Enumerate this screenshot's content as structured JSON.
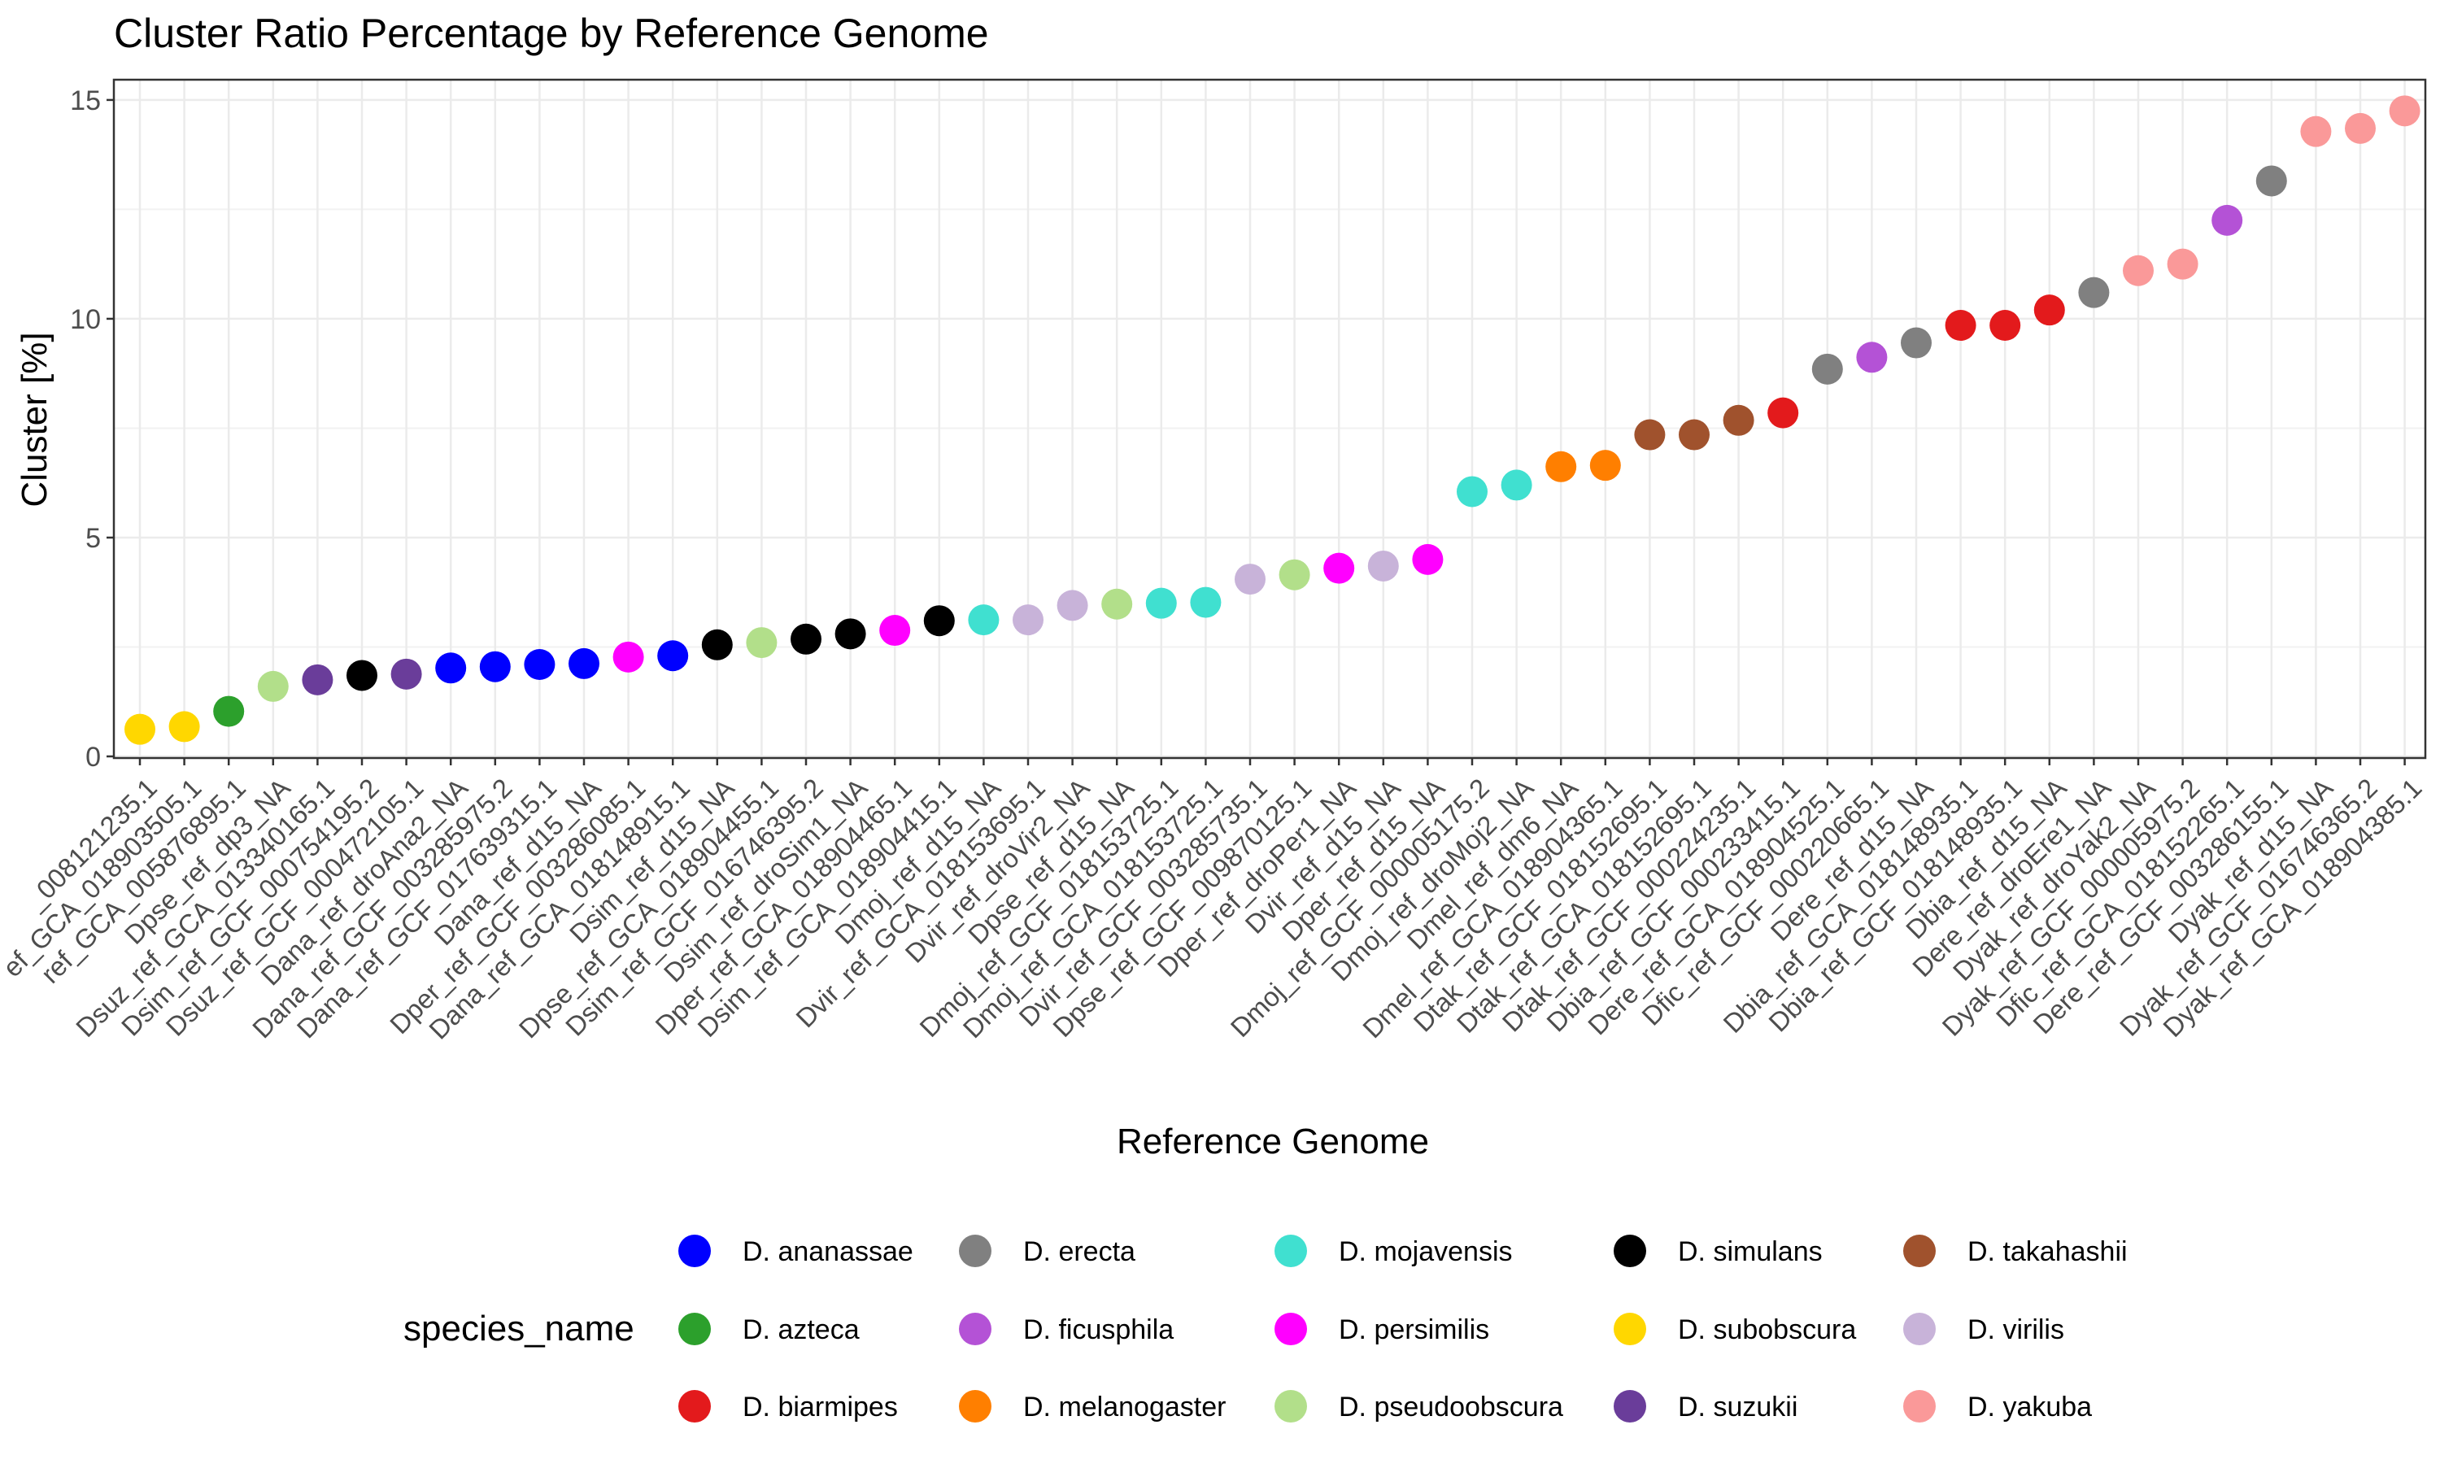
{
  "chart_data": {
    "type": "scatter",
    "title": "Cluster Ratio Percentage by Reference Genome",
    "xlabel": "Reference Genome",
    "ylabel": "Cluster [%]",
    "ylim": [
      0,
      15.5
    ],
    "yticks": [
      0,
      5,
      10,
      15
    ],
    "grid": true,
    "legend_placement": "bottom",
    "legend_title": "species_name",
    "legend": [
      {
        "name": "D. ananassae",
        "color": "#0000FF"
      },
      {
        "name": "D. erecta",
        "color": "#808080"
      },
      {
        "name": "D. mojavensis",
        "color": "#40E0D0"
      },
      {
        "name": "D. simulans",
        "color": "#000000"
      },
      {
        "name": "D. takahashii",
        "color": "#A0522D"
      },
      {
        "name": "D. azteca",
        "color": "#2CA02C"
      },
      {
        "name": "D. ficusphila",
        "color": "#B452D6"
      },
      {
        "name": "D. persimilis",
        "color": "#FF00FF"
      },
      {
        "name": "D. subobscura",
        "color": "#FFD700"
      },
      {
        "name": "D. virilis",
        "color": "#C8B3D9"
      },
      {
        "name": "D. biarmipes",
        "color": "#E31A1C"
      },
      {
        "name": "D. melanogaster",
        "color": "#FF7F00"
      },
      {
        "name": "D. pseudoobscura",
        "color": "#B2DF8A"
      },
      {
        "name": "D. suzukii",
        "color": "#6A3D9A"
      },
      {
        "name": "D. yakuba",
        "color": "#FA9999"
      }
    ],
    "points": [
      {
        "x": "_008121235.1",
        "y": 0.62,
        "species": "D. subobscura"
      },
      {
        "x": "ef_GCA_018903505.1",
        "y": 0.68,
        "species": "D. subobscura"
      },
      {
        "x": "ref_GCA_005876895.1",
        "y": 1.03,
        "species": "D. azteca"
      },
      {
        "x": "Dpse_ref_dp3_NA",
        "y": 1.6,
        "species": "D. pseudoobscura"
      },
      {
        "x": "Dsuz_ref_GCA_013340165.1",
        "y": 1.75,
        "species": "D. suzukii"
      },
      {
        "x": "Dsim_ref_GCF_000754195.2",
        "y": 1.85,
        "species": "D. simulans"
      },
      {
        "x": "Dsuz_ref_GCF_000472105.1",
        "y": 1.88,
        "species": "D. suzukii"
      },
      {
        "x": "Dana_ref_droAna2_NA",
        "y": 2.02,
        "species": "D. ananassae"
      },
      {
        "x": "Dana_ref_GCF_003285975.2",
        "y": 2.05,
        "species": "D. ananassae"
      },
      {
        "x": "Dana_ref_GCF_017639315.1",
        "y": 2.1,
        "species": "D. ananassae"
      },
      {
        "x": "Dana_ref_d15_NA",
        "y": 2.12,
        "species": "D. ananassae"
      },
      {
        "x": "Dper_ref_GCF_003286085.1",
        "y": 2.27,
        "species": "D. persimilis"
      },
      {
        "x": "Dana_ref_GCA_018148915.1",
        "y": 2.3,
        "species": "D. ananassae"
      },
      {
        "x": "Dsim_ref_d15_NA",
        "y": 2.55,
        "species": "D. simulans"
      },
      {
        "x": "Dpse_ref_GCA_018904455.1",
        "y": 2.6,
        "species": "D. pseudoobscura"
      },
      {
        "x": "Dsim_ref_GCF_016746395.2",
        "y": 2.68,
        "species": "D. simulans"
      },
      {
        "x": "Dsim_ref_droSim1_NA",
        "y": 2.8,
        "species": "D. simulans"
      },
      {
        "x": "Dper_ref_GCA_018904465.1",
        "y": 2.88,
        "species": "D. persimilis"
      },
      {
        "x": "Dsim_ref_GCA_018904415.1",
        "y": 3.1,
        "species": "D. simulans"
      },
      {
        "x": "Dmoj_ref_d15_NA",
        "y": 3.12,
        "species": "D. mojavensis"
      },
      {
        "x": "Dvir_ref_GCA_018153695.1",
        "y": 3.12,
        "species": "D. virilis"
      },
      {
        "x": "Dvir_ref_droVir2_NA",
        "y": 3.45,
        "species": "D. virilis"
      },
      {
        "x": "Dpse_ref_d15_NA",
        "y": 3.48,
        "species": "D. pseudoobscura"
      },
      {
        "x": "Dmoj_ref_GCF_018153725.1",
        "y": 3.5,
        "species": "D. mojavensis"
      },
      {
        "x": "Dmoj_ref_GCA_018153725.1",
        "y": 3.52,
        "species": "D. mojavensis"
      },
      {
        "x": "Dvir_ref_GCF_003285735.1",
        "y": 4.05,
        "species": "D. virilis"
      },
      {
        "x": "Dpse_ref_GCF_009870125.1",
        "y": 4.15,
        "species": "D. pseudoobscura"
      },
      {
        "x": "Dper_ref_droPer1_NA",
        "y": 4.3,
        "species": "D. persimilis"
      },
      {
        "x": "Dvir_ref_d15_NA",
        "y": 4.35,
        "species": "D. virilis"
      },
      {
        "x": "Dper_ref_d15_NA",
        "y": 4.5,
        "species": "D. persimilis"
      },
      {
        "x": "Dmoj_ref_GCF_000005175.2",
        "y": 6.05,
        "species": "D. mojavensis"
      },
      {
        "x": "Dmoj_ref_droMoj2_NA",
        "y": 6.2,
        "species": "D. mojavensis"
      },
      {
        "x": "Dmel_ref_dm6_NA",
        "y": 6.62,
        "species": "D. melanogaster"
      },
      {
        "x": "Dmel_ref_GCA_018904365.1",
        "y": 6.65,
        "species": "D. melanogaster"
      },
      {
        "x": "Dtak_ref_GCF_018152695.1",
        "y": 7.35,
        "species": "D. takahashii"
      },
      {
        "x": "Dtak_ref_GCA_018152695.1",
        "y": 7.35,
        "species": "D. takahashii"
      },
      {
        "x": "Dtak_ref_GCF_000224235.1",
        "y": 7.68,
        "species": "D. takahashii"
      },
      {
        "x": "Dbia_ref_GCF_000233415.1",
        "y": 7.85,
        "species": "D. biarmipes"
      },
      {
        "x": "Dere_ref_GCA_018904525.1",
        "y": 8.85,
        "species": "D. erecta"
      },
      {
        "x": "Dfic_ref_GCF_000220665.1",
        "y": 9.12,
        "species": "D. ficusphila"
      },
      {
        "x": "Dere_ref_d15_NA",
        "y": 9.45,
        "species": "D. erecta"
      },
      {
        "x": "Dbia_ref_GCA_018148935.1",
        "y": 9.85,
        "species": "D. biarmipes"
      },
      {
        "x": "Dbia_ref_GCF_018148935.1",
        "y": 9.85,
        "species": "D. biarmipes"
      },
      {
        "x": "Dbia_ref_d15_NA",
        "y": 10.2,
        "species": "D. biarmipes"
      },
      {
        "x": "Dere_ref_droEre1_NA",
        "y": 10.6,
        "species": "D. erecta"
      },
      {
        "x": "Dyak_ref_droYak2_NA",
        "y": 11.1,
        "species": "D. yakuba"
      },
      {
        "x": "Dyak_ref_GCF_000005975.2",
        "y": 11.25,
        "species": "D. yakuba"
      },
      {
        "x": "Dfic_ref_GCA_018152265.1",
        "y": 12.25,
        "species": "D. ficusphila"
      },
      {
        "x": "Dere_ref_GCF_003286155.1",
        "y": 13.15,
        "species": "D. erecta"
      },
      {
        "x": "Dyak_ref_d15_NA",
        "y": 14.28,
        "species": "D. yakuba"
      },
      {
        "x": "Dyak_ref_GCF_016746365.2",
        "y": 14.35,
        "species": "D. yakuba"
      },
      {
        "x": "Dyak_ref_GCA_018904385.1",
        "y": 14.75,
        "species": "D. yakuba"
      }
    ]
  }
}
